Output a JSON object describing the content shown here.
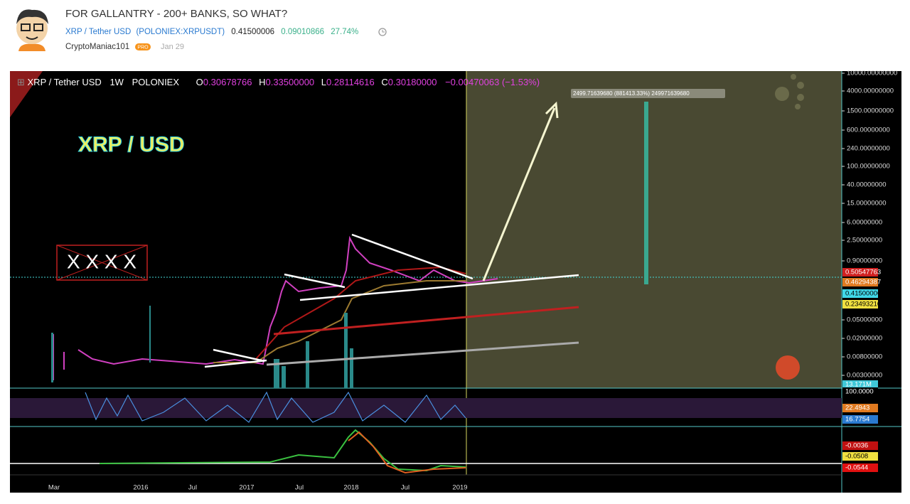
{
  "header": {
    "title": "FOR GALLANTRY - 200+ BANKS, SO WHAT?",
    "symbol": "XRP / Tether USD",
    "exchange": "(POLONIEX:XRPUSDT)",
    "price": "0.41500006",
    "change": "0.09010866",
    "change_percent": "27.74%",
    "author": "CryptoManiac101",
    "badge": "PRO",
    "date": "Jan 29"
  },
  "chart": {
    "legend": {
      "symbol": "XRP / Tether USD",
      "interval": "1W",
      "exchange": "POLONIEX",
      "open_label": "O",
      "open": "0.30678766",
      "high_label": "H",
      "high": "0.33500000",
      "low_label": "L",
      "low": "0.28114616",
      "close_label": "C",
      "close": "0.30180000",
      "change": "−0.00470063 (−1.53%)"
    },
    "annotations": {
      "headline": "XRP / USD",
      "measure": "2499.71639680 (881413.33%) 249971639680",
      "crossed": "X X X X"
    },
    "price_axis": [
      "10000.00000000",
      "4000.00000000",
      "1500.00000000",
      "600.00000000",
      "240.00000000",
      "100.00000000",
      "40.00000000",
      "15.00000000",
      "6.00000000",
      "2.50000000",
      "0.90000000",
      "0.05000000",
      "0.02000000",
      "0.00800000",
      "0.00300000"
    ],
    "price_tags": [
      "0.50547763",
      "0.46294387",
      "0.41500006",
      "0.23493210",
      "13.171M"
    ],
    "stoch_tags": [
      "100.0000",
      "22.4943",
      "16.7754"
    ],
    "macd_tags": [
      "-0.0036",
      "-0.0508",
      "-0.0544"
    ],
    "time_axis": [
      "Mar",
      "2016",
      "Jul",
      "2017",
      "Jul",
      "2018",
      "Jul",
      "2019"
    ]
  }
}
